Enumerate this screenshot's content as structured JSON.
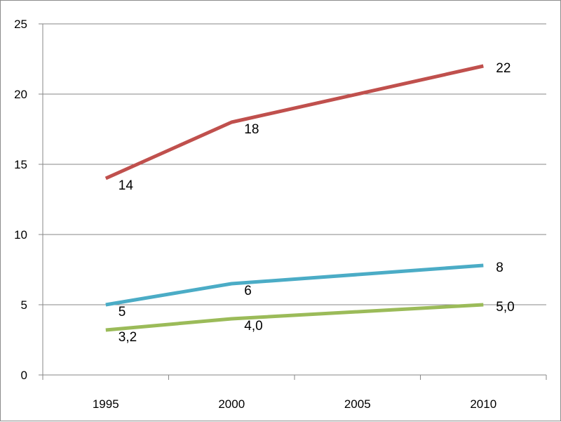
{
  "chart_data": {
    "type": "line",
    "title": "",
    "xlabel": "",
    "ylabel": "",
    "categories": [
      "1995",
      "2000",
      "2005",
      "2010"
    ],
    "ylim": [
      0,
      25
    ],
    "yticks": [
      0,
      5,
      10,
      15,
      20,
      25
    ],
    "grid": true,
    "legend": "none",
    "series": [
      {
        "color": "#c0504d",
        "x": [
          1995,
          2000,
          2010
        ],
        "values": [
          14,
          18,
          22
        ],
        "labels": [
          "14",
          "18",
          "22"
        ]
      },
      {
        "color": "#4bacc6",
        "x": [
          1995,
          2000,
          2010
        ],
        "values": [
          5,
          6.5,
          7.8
        ],
        "labels": [
          "5",
          "6",
          "8"
        ]
      },
      {
        "color": "#9bbb59",
        "x": [
          1995,
          2000,
          2010
        ],
        "values": [
          3.2,
          4.0,
          5.0
        ],
        "labels": [
          "3,2",
          "4,0",
          "5,0"
        ]
      }
    ]
  }
}
